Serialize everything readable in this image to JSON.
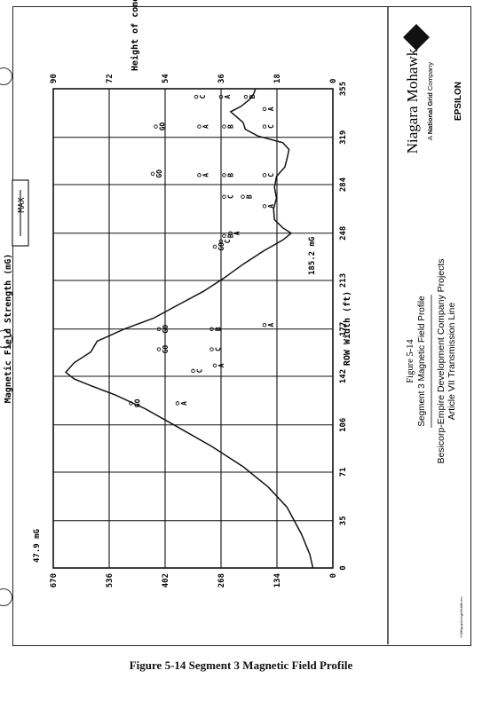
{
  "caption": "Figure 5-14 Segment 3 Magnetic Field Profile",
  "panel": {
    "figure_number": "Figure 5-14",
    "figure_title": "Segment 3 Magnetic Field Profile",
    "project_line1": "Besicorp-Empire Development Company Projects",
    "project_line2": "Article VII Transmission Line",
    "company_name": "Niagara Mohawk",
    "company_sub_prefix": "A ",
    "company_sub_bold": "National Grid",
    "company_sub_suffix": " Company",
    "engineer_name": "EPSILON",
    "edge_note": "Y:\\NM\\graphics\\gis\\field\\fs mrc"
  },
  "chart_data": {
    "type": "line",
    "title": "",
    "xlabel": "ROW Width (ft)",
    "ylabel": "Magnetic Field Strength (mG)",
    "y2label": "Height of conductors (ft)",
    "legend": "MAX",
    "xlim": [
      0,
      355
    ],
    "ylim": [
      0,
      670
    ],
    "y2lim": [
      0,
      90
    ],
    "x_ticks": [
      "0",
      "35",
      "71",
      "106",
      "142",
      "177",
      "213",
      "248",
      "284",
      "319",
      "355"
    ],
    "y_ticks": [
      "0",
      "134",
      "268",
      "402",
      "536",
      "670"
    ],
    "y2_ticks": [
      "0",
      "18",
      "36",
      "54",
      "72",
      "90"
    ],
    "annotations": {
      "left_end": "47.9 mG",
      "right_end": "185.2 mG"
    },
    "series": [
      {
        "name": "MAX",
        "x": [
          0,
          10,
          25,
          45,
          60,
          75,
          90,
          105,
          118,
          128,
          135,
          140,
          145,
          152,
          160,
          168,
          177,
          185,
          195,
          205,
          215,
          225,
          235,
          243,
          248,
          252,
          258,
          266,
          274,
          282,
          290,
          297,
          303,
          310,
          315,
          320,
          325,
          330,
          334,
          338,
          342,
          347,
          351,
          355
        ],
        "y": [
          47.9,
          55,
          75,
          110,
          155,
          215,
          290,
          375,
          450,
          520,
          580,
          620,
          640,
          620,
          580,
          565,
          500,
          430,
          370,
          310,
          260,
          215,
          165,
          120,
          100,
          120,
          140,
          142,
          135,
          140,
          135,
          115,
          110,
          105,
          120,
          180,
          210,
          215,
          230,
          245,
          220,
          200,
          190,
          185.2
        ]
      }
    ],
    "conductors": [
      {
        "label": "A",
        "x": 122,
        "y": 50
      },
      {
        "label": "GO",
        "x": 122,
        "y": 65
      },
      {
        "label": "C",
        "x": 146,
        "y": 45
      },
      {
        "label": "A",
        "x": 150,
        "y": 38
      },
      {
        "label": "GO",
        "x": 162,
        "y": 56
      },
      {
        "label": "C",
        "x": 162,
        "y": 39
      },
      {
        "label": "GO",
        "x": 177,
        "y": 56
      },
      {
        "label": "B",
        "x": 177,
        "y": 39
      },
      {
        "label": "A",
        "x": 180,
        "y": 22
      },
      {
        "label": "GO",
        "x": 238,
        "y": 38
      },
      {
        "label": "C",
        "x": 242,
        "y": 36
      },
      {
        "label": "B",
        "x": 246,
        "y": 35
      },
      {
        "label": "A",
        "x": 248,
        "y": 33
      },
      {
        "label": "C",
        "x": 275,
        "y": 35
      },
      {
        "label": "B",
        "x": 275,
        "y": 29
      },
      {
        "label": "A",
        "x": 268,
        "y": 22
      },
      {
        "label": "GO",
        "x": 292,
        "y": 58
      },
      {
        "label": "A",
        "x": 291,
        "y": 43
      },
      {
        "label": "B",
        "x": 291,
        "y": 35
      },
      {
        "label": "C",
        "x": 291,
        "y": 22
      },
      {
        "label": "GO",
        "x": 327,
        "y": 57
      },
      {
        "label": "A",
        "x": 327,
        "y": 43
      },
      {
        "label": "B",
        "x": 327,
        "y": 35
      },
      {
        "label": "C",
        "x": 327,
        "y": 22
      },
      {
        "label": "C",
        "x": 349,
        "y": 44
      },
      {
        "label": "A",
        "x": 349,
        "y": 36
      },
      {
        "label": "B",
        "x": 349,
        "y": 28
      },
      {
        "label": "A",
        "x": 340,
        "y": 22
      }
    ]
  }
}
